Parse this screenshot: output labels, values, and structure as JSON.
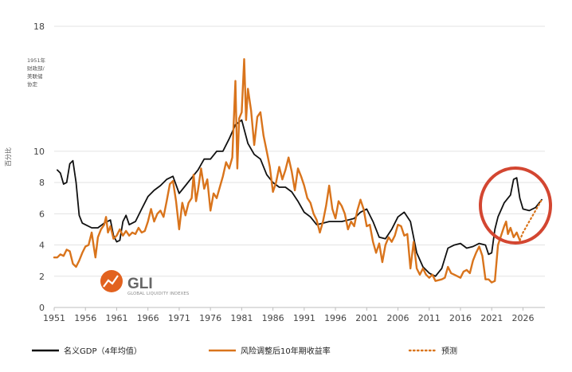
{
  "chart_data": {
    "type": "line",
    "title": "",
    "xlabel": "",
    "ylabel": "百分比",
    "xlim": [
      1951,
      2029
    ],
    "ylim": [
      0,
      18
    ],
    "x_ticks": [
      1951,
      1956,
      1961,
      1966,
      1971,
      1976,
      1981,
      1986,
      1991,
      1996,
      2001,
      2006,
      2011,
      2016,
      2021,
      2026
    ],
    "y_ticks": [
      0,
      2,
      4,
      6,
      8,
      10,
      18
    ],
    "grid": "horizontal",
    "legend_position": "bottom",
    "annotation": [
      "1951年",
      "财政部/",
      "美联储",
      "协定"
    ],
    "colors": {
      "gdp": "#111111",
      "yield": "#d9741c",
      "forecast": "#d9741c",
      "circle": "#d34631"
    },
    "logo": {
      "name": "GLI",
      "subtitle": "GLOBAL LIQUIDITY INDEXES"
    },
    "series": [
      {
        "name": "名义GDP（4年均值）",
        "style": "solid",
        "points": [
          [
            1951.5,
            8.8
          ],
          [
            1952,
            8.6
          ],
          [
            1952.5,
            7.9
          ],
          [
            1953,
            8.0
          ],
          [
            1953.5,
            9.2
          ],
          [
            1954,
            9.4
          ],
          [
            1954.5,
            8.0
          ],
          [
            1955,
            5.9
          ],
          [
            1955.5,
            5.4
          ],
          [
            1956,
            5.3
          ],
          [
            1957,
            5.1
          ],
          [
            1958,
            5.1
          ],
          [
            1959,
            5.4
          ],
          [
            1960,
            5.6
          ],
          [
            1960.5,
            4.6
          ],
          [
            1961,
            4.2
          ],
          [
            1961.5,
            4.3
          ],
          [
            1962,
            5.5
          ],
          [
            1962.5,
            5.9
          ],
          [
            1963,
            5.3
          ],
          [
            1964,
            5.5
          ],
          [
            1965,
            6.3
          ],
          [
            1966,
            7.1
          ],
          [
            1967,
            7.5
          ],
          [
            1968,
            7.8
          ],
          [
            1969,
            8.2
          ],
          [
            1970,
            8.4
          ],
          [
            1971,
            7.3
          ],
          [
            1972,
            7.8
          ],
          [
            1973,
            8.3
          ],
          [
            1974,
            8.8
          ],
          [
            1975,
            9.5
          ],
          [
            1976,
            9.5
          ],
          [
            1977,
            10.0
          ],
          [
            1978,
            10.0
          ],
          [
            1979,
            10.8
          ],
          [
            1980,
            11.7
          ],
          [
            1981,
            12.0
          ],
          [
            1982,
            10.5
          ],
          [
            1983,
            9.8
          ],
          [
            1984,
            9.5
          ],
          [
            1985,
            8.5
          ],
          [
            1986,
            8.0
          ],
          [
            1987,
            7.7
          ],
          [
            1988,
            7.7
          ],
          [
            1989,
            7.4
          ],
          [
            1990,
            6.8
          ],
          [
            1991,
            6.1
          ],
          [
            1992,
            5.8
          ],
          [
            1993,
            5.3
          ],
          [
            1994,
            5.4
          ],
          [
            1995,
            5.5
          ],
          [
            1996,
            5.5
          ],
          [
            1997,
            5.5
          ],
          [
            1998,
            5.6
          ],
          [
            1999,
            5.7
          ],
          [
            2000,
            6.1
          ],
          [
            2001,
            6.3
          ],
          [
            2002,
            5.5
          ],
          [
            2003,
            4.5
          ],
          [
            2004,
            4.4
          ],
          [
            2005,
            5.0
          ],
          [
            2006,
            5.8
          ],
          [
            2007,
            6.1
          ],
          [
            2008,
            5.5
          ],
          [
            2009,
            3.5
          ],
          [
            2010,
            2.6
          ],
          [
            2011,
            2.2
          ],
          [
            2012,
            2.0
          ],
          [
            2013,
            2.5
          ],
          [
            2014,
            3.8
          ],
          [
            2015,
            4.0
          ],
          [
            2016,
            4.1
          ],
          [
            2017,
            3.8
          ],
          [
            2018,
            3.9
          ],
          [
            2019,
            4.1
          ],
          [
            2020,
            4.0
          ],
          [
            2020.5,
            3.4
          ],
          [
            2021,
            3.5
          ],
          [
            2021.5,
            5.0
          ],
          [
            2022,
            5.8
          ],
          [
            2023,
            6.7
          ],
          [
            2024,
            7.2
          ],
          [
            2024.5,
            8.2
          ],
          [
            2025,
            8.3
          ],
          [
            2025.5,
            7.0
          ],
          [
            2026,
            6.3
          ],
          [
            2027,
            6.2
          ],
          [
            2028,
            6.4
          ],
          [
            2029,
            6.9
          ]
        ]
      },
      {
        "name": "风险调整后10年期收益率",
        "style": "solid",
        "points": [
          [
            1951,
            3.2
          ],
          [
            1951.5,
            3.2
          ],
          [
            1952,
            3.4
          ],
          [
            1952.5,
            3.3
          ],
          [
            1953,
            3.7
          ],
          [
            1953.5,
            3.6
          ],
          [
            1954,
            2.8
          ],
          [
            1954.5,
            2.6
          ],
          [
            1955,
            3.0
          ],
          [
            1955.5,
            3.5
          ],
          [
            1956,
            3.9
          ],
          [
            1956.5,
            4.0
          ],
          [
            1957,
            4.8
          ],
          [
            1957.3,
            4.0
          ],
          [
            1957.6,
            3.2
          ],
          [
            1958,
            4.5
          ],
          [
            1958.5,
            5.0
          ],
          [
            1959,
            5.3
          ],
          [
            1959.3,
            5.8
          ],
          [
            1959.6,
            4.8
          ],
          [
            1960,
            5.2
          ],
          [
            1960.5,
            4.4
          ],
          [
            1961,
            4.6
          ],
          [
            1961.5,
            5.0
          ],
          [
            1962,
            4.6
          ],
          [
            1962.5,
            4.9
          ],
          [
            1963,
            4.6
          ],
          [
            1963.5,
            4.8
          ],
          [
            1964,
            4.7
          ],
          [
            1964.5,
            5.1
          ],
          [
            1965,
            4.8
          ],
          [
            1965.5,
            4.9
          ],
          [
            1966,
            5.5
          ],
          [
            1966.5,
            6.3
          ],
          [
            1967,
            5.5
          ],
          [
            1967.5,
            6.0
          ],
          [
            1968,
            6.2
          ],
          [
            1968.5,
            5.8
          ],
          [
            1969,
            6.8
          ],
          [
            1969.5,
            7.9
          ],
          [
            1970,
            8.1
          ],
          [
            1970.5,
            6.8
          ],
          [
            1971,
            5.0
          ],
          [
            1971.5,
            6.7
          ],
          [
            1972,
            5.9
          ],
          [
            1972.5,
            6.7
          ],
          [
            1973,
            7.0
          ],
          [
            1973.3,
            8.5
          ],
          [
            1973.7,
            6.8
          ],
          [
            1974,
            7.5
          ],
          [
            1974.5,
            8.9
          ],
          [
            1975,
            7.6
          ],
          [
            1975.5,
            8.2
          ],
          [
            1976,
            6.2
          ],
          [
            1976.5,
            7.3
          ],
          [
            1977,
            7.0
          ],
          [
            1977.5,
            7.7
          ],
          [
            1978,
            8.4
          ],
          [
            1978.5,
            9.3
          ],
          [
            1979,
            8.9
          ],
          [
            1979.5,
            9.6
          ],
          [
            1980,
            14.5
          ],
          [
            1980.3,
            8.9
          ],
          [
            1980.6,
            12.1
          ],
          [
            1981,
            12.5
          ],
          [
            1981.4,
            15.9
          ],
          [
            1981.7,
            12.0
          ],
          [
            1982,
            14.0
          ],
          [
            1982.5,
            12.6
          ],
          [
            1983,
            10.4
          ],
          [
            1983.5,
            12.2
          ],
          [
            1984,
            12.5
          ],
          [
            1984.5,
            11.0
          ],
          [
            1985,
            10.0
          ],
          [
            1985.5,
            9.0
          ],
          [
            1986,
            7.4
          ],
          [
            1986.5,
            8.0
          ],
          [
            1987,
            9.0
          ],
          [
            1987.5,
            8.2
          ],
          [
            1988,
            8.8
          ],
          [
            1988.5,
            9.6
          ],
          [
            1989,
            8.7
          ],
          [
            1989.5,
            7.5
          ],
          [
            1990,
            8.9
          ],
          [
            1990.5,
            8.4
          ],
          [
            1991,
            7.8
          ],
          [
            1991.5,
            7.0
          ],
          [
            1992,
            6.7
          ],
          [
            1992.5,
            6.0
          ],
          [
            1993,
            5.6
          ],
          [
            1993.5,
            4.8
          ],
          [
            1994,
            5.5
          ],
          [
            1994.5,
            6.5
          ],
          [
            1995,
            7.8
          ],
          [
            1995.5,
            6.3
          ],
          [
            1996,
            5.7
          ],
          [
            1996.5,
            6.8
          ],
          [
            1997,
            6.5
          ],
          [
            1997.5,
            6.0
          ],
          [
            1998,
            5.0
          ],
          [
            1998.5,
            5.5
          ],
          [
            1999,
            5.2
          ],
          [
            1999.5,
            6.2
          ],
          [
            2000,
            6.9
          ],
          [
            2000.5,
            6.3
          ],
          [
            2001,
            5.2
          ],
          [
            2001.5,
            5.3
          ],
          [
            2002,
            4.2
          ],
          [
            2002.5,
            3.5
          ],
          [
            2003,
            4.1
          ],
          [
            2003.5,
            2.9
          ],
          [
            2004,
            4.0
          ],
          [
            2004.5,
            4.5
          ],
          [
            2005,
            4.2
          ],
          [
            2005.5,
            4.6
          ],
          [
            2006,
            5.3
          ],
          [
            2006.5,
            5.2
          ],
          [
            2007,
            4.6
          ],
          [
            2007.5,
            4.7
          ],
          [
            2008,
            2.5
          ],
          [
            2008.5,
            4.2
          ],
          [
            2009,
            2.5
          ],
          [
            2009.5,
            2.1
          ],
          [
            2010,
            2.5
          ],
          [
            2010.5,
            2.1
          ],
          [
            2011,
            1.9
          ],
          [
            2011.5,
            2.1
          ],
          [
            2012,
            1.7
          ],
          [
            2013,
            1.8
          ],
          [
            2013.5,
            1.9
          ],
          [
            2014,
            2.6
          ],
          [
            2014.5,
            2.2
          ],
          [
            2015,
            2.1
          ],
          [
            2016,
            1.9
          ],
          [
            2016.5,
            2.3
          ],
          [
            2017,
            2.4
          ],
          [
            2017.5,
            2.2
          ],
          [
            2018,
            3.0
          ],
          [
            2018.5,
            3.5
          ],
          [
            2019,
            3.9
          ],
          [
            2019.5,
            3.3
          ],
          [
            2020,
            1.8
          ],
          [
            2020.5,
            1.8
          ],
          [
            2021,
            1.6
          ],
          [
            2021.5,
            1.7
          ],
          [
            2022,
            4.0
          ],
          [
            2022.5,
            4.6
          ],
          [
            2023,
            5.2
          ],
          [
            2023.3,
            5.5
          ],
          [
            2023.6,
            4.7
          ],
          [
            2024,
            5.1
          ],
          [
            2024.5,
            4.5
          ],
          [
            2025,
            4.8
          ],
          [
            2025.5,
            4.3
          ]
        ]
      },
      {
        "name": "预测",
        "style": "dotted",
        "points": [
          [
            2025.5,
            4.3
          ],
          [
            2026,
            4.8
          ],
          [
            2027,
            5.5
          ],
          [
            2028,
            6.2
          ],
          [
            2029,
            6.9
          ]
        ]
      }
    ]
  }
}
